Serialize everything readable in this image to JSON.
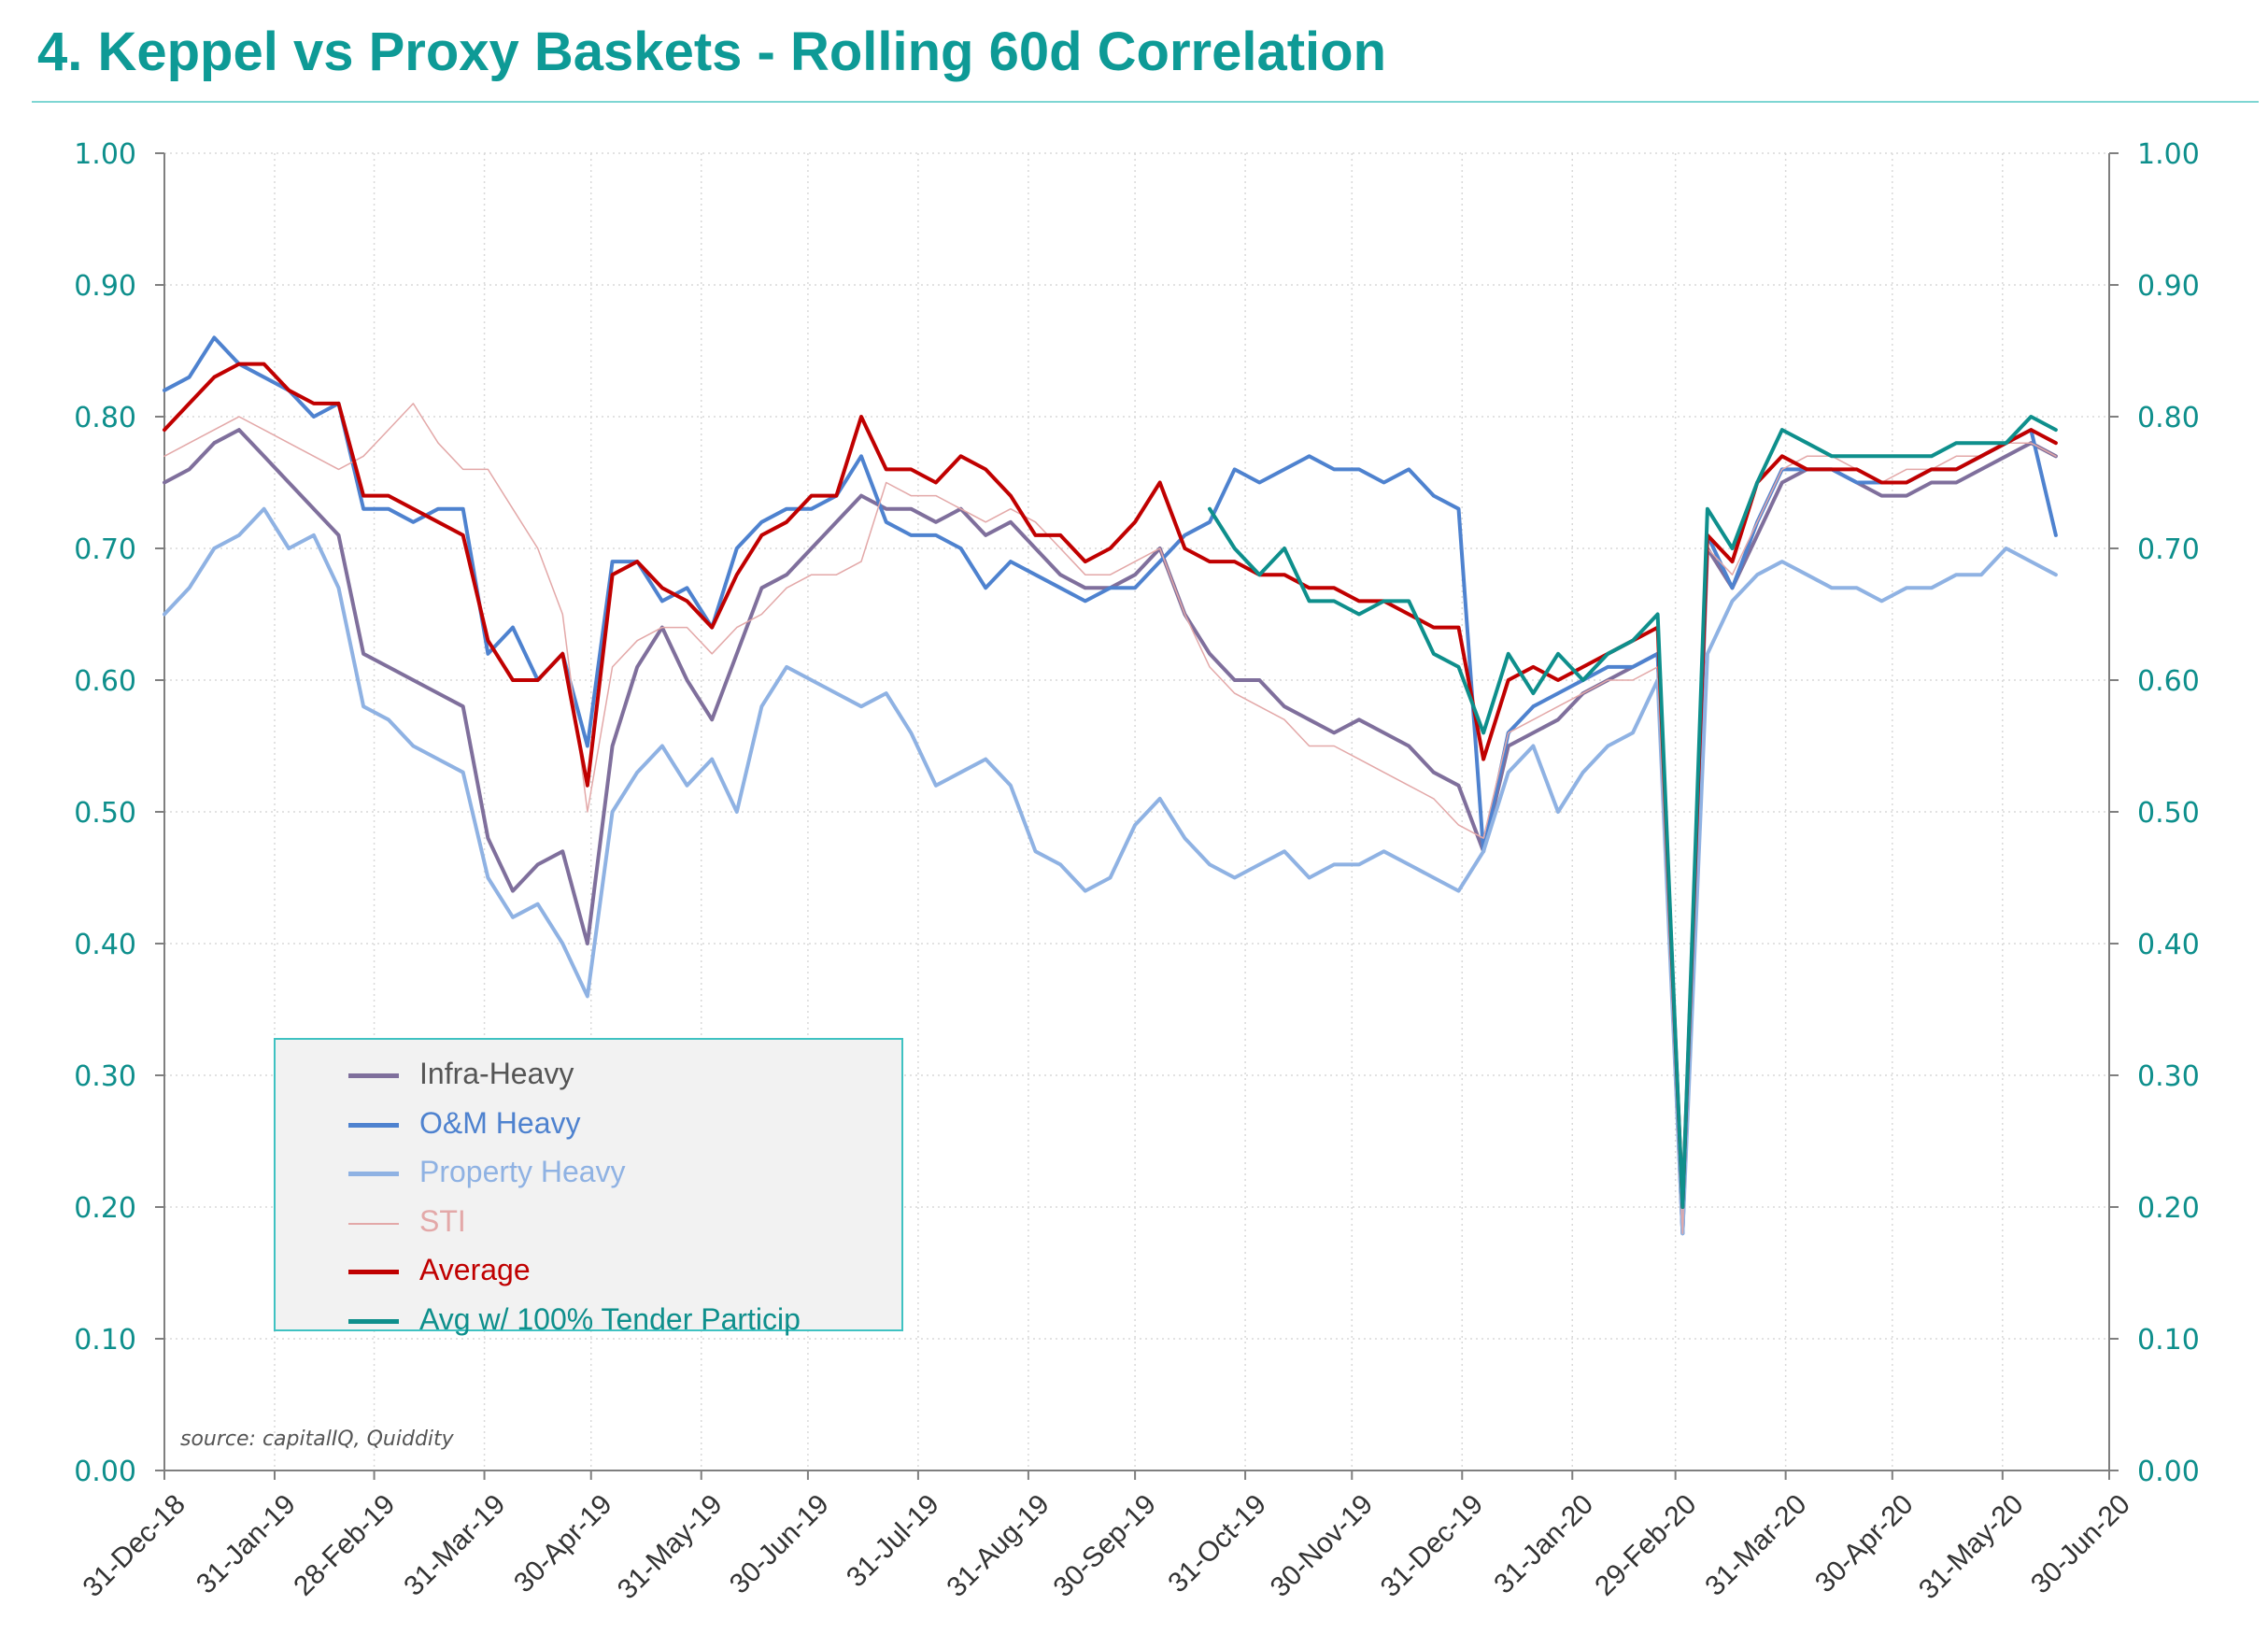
{
  "title": "4.  Keppel vs Proxy Baskets - Rolling 60d Correlation",
  "source_note": "source: capitalIQ, Quiddity",
  "colors": {
    "title": "#0e9a96",
    "axis_labels": "#0e8f8c",
    "Infra-Heavy": "#7f6f9c",
    "O&M Heavy": "#4e82cf",
    "Property Heavy": "#8fb2e3",
    "STI": "#e3a8a8",
    "Average": "#c00000",
    "Avg w/ 100% Tender Particip": "#0e8f8c"
  },
  "chart_data": {
    "type": "line",
    "title": "4.  Keppel vs Proxy Baskets - Rolling 60d Correlation",
    "xlabel": "",
    "ylabel": "",
    "ylim": [
      0,
      1
    ],
    "y_ticks": [
      "0.00",
      "0.10",
      "0.20",
      "0.30",
      "0.40",
      "0.50",
      "0.60",
      "0.70",
      "0.80",
      "0.90",
      "1.00"
    ],
    "y_axis_right": true,
    "x_ticks": [
      "31-Dec-18",
      "31-Jan-19",
      "28-Feb-19",
      "31-Mar-19",
      "30-Apr-19",
      "31-May-19",
      "30-Jun-19",
      "31-Jul-19",
      "31-Aug-19",
      "30-Sep-19",
      "31-Oct-19",
      "30-Nov-19",
      "31-Dec-19",
      "31-Jan-20",
      "29-Feb-20",
      "31-Mar-20",
      "30-Apr-20",
      "31-May-20",
      "30-Jun-20"
    ],
    "xlim": [
      "2018-12-31",
      "2020-06-30"
    ],
    "grid": true,
    "legend": "lower-left",
    "series": [
      {
        "name": "Infra-Heavy",
        "x": [
          "2018-12-31",
          "2019-01-07",
          "2019-01-14",
          "2019-01-21",
          "2019-01-28",
          "2019-02-04",
          "2019-02-11",
          "2019-02-18",
          "2019-02-25",
          "2019-03-04",
          "2019-03-11",
          "2019-03-18",
          "2019-03-25",
          "2019-04-01",
          "2019-04-08",
          "2019-04-15",
          "2019-04-22",
          "2019-04-29",
          "2019-05-06",
          "2019-05-13",
          "2019-05-20",
          "2019-05-27",
          "2019-06-03",
          "2019-06-10",
          "2019-06-17",
          "2019-06-24",
          "2019-07-01",
          "2019-07-08",
          "2019-07-15",
          "2019-07-22",
          "2019-07-29",
          "2019-08-05",
          "2019-08-12",
          "2019-08-19",
          "2019-08-26",
          "2019-09-02",
          "2019-09-09",
          "2019-09-16",
          "2019-09-23",
          "2019-09-30",
          "2019-10-07",
          "2019-10-14",
          "2019-10-21",
          "2019-10-28",
          "2019-11-04",
          "2019-11-11",
          "2019-11-18",
          "2019-11-25",
          "2019-12-02",
          "2019-12-09",
          "2019-12-16",
          "2019-12-23",
          "2019-12-30",
          "2020-01-06",
          "2020-01-13",
          "2020-01-20",
          "2020-01-27",
          "2020-02-03",
          "2020-02-10",
          "2020-02-17",
          "2020-02-24",
          "2020-03-02",
          "2020-03-09",
          "2020-03-16",
          "2020-03-23",
          "2020-03-30",
          "2020-04-06",
          "2020-04-13",
          "2020-04-20",
          "2020-04-27",
          "2020-05-04",
          "2020-05-11",
          "2020-05-18",
          "2020-05-25",
          "2020-06-01",
          "2020-06-08",
          "2020-06-15"
        ],
        "values": [
          0.75,
          0.76,
          0.78,
          0.79,
          0.77,
          0.75,
          0.73,
          0.71,
          0.62,
          0.61,
          0.6,
          0.59,
          0.58,
          0.48,
          0.44,
          0.46,
          0.47,
          0.4,
          0.55,
          0.61,
          0.64,
          0.6,
          0.57,
          0.62,
          0.67,
          0.68,
          0.7,
          0.72,
          0.74,
          0.73,
          0.73,
          0.72,
          0.73,
          0.71,
          0.72,
          0.7,
          0.68,
          0.67,
          0.67,
          0.68,
          0.7,
          0.65,
          0.62,
          0.6,
          0.6,
          0.58,
          0.57,
          0.56,
          0.57,
          0.56,
          0.55,
          0.53,
          0.52,
          0.47,
          0.55,
          0.56,
          0.57,
          0.59,
          0.6,
          0.61,
          0.62,
          0.18,
          0.7,
          0.67,
          0.71,
          0.75,
          0.76,
          0.76,
          0.75,
          0.74,
          0.74,
          0.75,
          0.75,
          0.76,
          0.77,
          0.78,
          0.77
        ]
      },
      {
        "name": "O&M Heavy",
        "x": [
          "2018-12-31",
          "2019-01-07",
          "2019-01-14",
          "2019-01-21",
          "2019-01-28",
          "2019-02-04",
          "2019-02-11",
          "2019-02-18",
          "2019-02-25",
          "2019-03-04",
          "2019-03-11",
          "2019-03-18",
          "2019-03-25",
          "2019-04-01",
          "2019-04-08",
          "2019-04-15",
          "2019-04-22",
          "2019-04-29",
          "2019-05-06",
          "2019-05-13",
          "2019-05-20",
          "2019-05-27",
          "2019-06-03",
          "2019-06-10",
          "2019-06-17",
          "2019-06-24",
          "2019-07-01",
          "2019-07-08",
          "2019-07-15",
          "2019-07-22",
          "2019-07-29",
          "2019-08-05",
          "2019-08-12",
          "2019-08-19",
          "2019-08-26",
          "2019-09-02",
          "2019-09-09",
          "2019-09-16",
          "2019-09-23",
          "2019-09-30",
          "2019-10-07",
          "2019-10-14",
          "2019-10-21",
          "2019-10-28",
          "2019-11-04",
          "2019-11-11",
          "2019-11-18",
          "2019-11-25",
          "2019-12-02",
          "2019-12-09",
          "2019-12-16",
          "2019-12-23",
          "2019-12-30",
          "2020-01-06",
          "2020-01-13",
          "2020-01-20",
          "2020-01-27",
          "2020-02-03",
          "2020-02-10",
          "2020-02-17",
          "2020-02-24",
          "2020-03-02",
          "2020-03-09",
          "2020-03-16",
          "2020-03-23",
          "2020-03-30",
          "2020-04-06",
          "2020-04-13",
          "2020-04-20",
          "2020-04-27",
          "2020-05-04",
          "2020-05-11",
          "2020-05-18",
          "2020-05-25",
          "2020-06-01",
          "2020-06-08",
          "2020-06-15"
        ],
        "values": [
          0.82,
          0.83,
          0.86,
          0.84,
          0.83,
          0.82,
          0.8,
          0.81,
          0.73,
          0.73,
          0.72,
          0.73,
          0.73,
          0.62,
          0.64,
          0.6,
          0.62,
          0.55,
          0.69,
          0.69,
          0.66,
          0.67,
          0.64,
          0.7,
          0.72,
          0.73,
          0.73,
          0.74,
          0.77,
          0.72,
          0.71,
          0.71,
          0.7,
          0.67,
          0.69,
          0.68,
          0.67,
          0.66,
          0.67,
          0.67,
          0.69,
          0.71,
          0.72,
          0.76,
          0.75,
          0.76,
          0.77,
          0.76,
          0.76,
          0.75,
          0.76,
          0.74,
          0.73,
          0.47,
          0.56,
          0.58,
          0.59,
          0.6,
          0.61,
          0.61,
          0.62,
          0.18,
          0.71,
          0.67,
          0.72,
          0.76,
          0.76,
          0.76,
          0.75,
          0.75,
          0.75,
          0.76,
          0.76,
          0.77,
          0.78,
          0.79,
          0.71
        ]
      },
      {
        "name": "Property Heavy",
        "x": [
          "2018-12-31",
          "2019-01-07",
          "2019-01-14",
          "2019-01-21",
          "2019-01-28",
          "2019-02-04",
          "2019-02-11",
          "2019-02-18",
          "2019-02-25",
          "2019-03-04",
          "2019-03-11",
          "2019-03-18",
          "2019-03-25",
          "2019-04-01",
          "2019-04-08",
          "2019-04-15",
          "2019-04-22",
          "2019-04-29",
          "2019-05-06",
          "2019-05-13",
          "2019-05-20",
          "2019-05-27",
          "2019-06-03",
          "2019-06-10",
          "2019-06-17",
          "2019-06-24",
          "2019-07-01",
          "2019-07-08",
          "2019-07-15",
          "2019-07-22",
          "2019-07-29",
          "2019-08-05",
          "2019-08-12",
          "2019-08-19",
          "2019-08-26",
          "2019-09-02",
          "2019-09-09",
          "2019-09-16",
          "2019-09-23",
          "2019-09-30",
          "2019-10-07",
          "2019-10-14",
          "2019-10-21",
          "2019-10-28",
          "2019-11-04",
          "2019-11-11",
          "2019-11-18",
          "2019-11-25",
          "2019-12-02",
          "2019-12-09",
          "2019-12-16",
          "2019-12-23",
          "2019-12-30",
          "2020-01-06",
          "2020-01-13",
          "2020-01-20",
          "2020-01-27",
          "2020-02-03",
          "2020-02-10",
          "2020-02-17",
          "2020-02-24",
          "2020-03-02",
          "2020-03-09",
          "2020-03-16",
          "2020-03-23",
          "2020-03-30",
          "2020-04-06",
          "2020-04-13",
          "2020-04-20",
          "2020-04-27",
          "2020-05-04",
          "2020-05-11",
          "2020-05-18",
          "2020-05-25",
          "2020-06-01",
          "2020-06-08",
          "2020-06-15"
        ],
        "values": [
          0.65,
          0.67,
          0.7,
          0.71,
          0.73,
          0.7,
          0.71,
          0.67,
          0.58,
          0.57,
          0.55,
          0.54,
          0.53,
          0.45,
          0.42,
          0.43,
          0.4,
          0.36,
          0.5,
          0.53,
          0.55,
          0.52,
          0.54,
          0.5,
          0.58,
          0.61,
          0.6,
          0.59,
          0.58,
          0.59,
          0.56,
          0.52,
          0.53,
          0.54,
          0.52,
          0.47,
          0.46,
          0.44,
          0.45,
          0.49,
          0.51,
          0.48,
          0.46,
          0.45,
          0.46,
          0.47,
          0.45,
          0.46,
          0.46,
          0.47,
          0.46,
          0.45,
          0.44,
          0.47,
          0.53,
          0.55,
          0.5,
          0.53,
          0.55,
          0.56,
          0.6,
          0.18,
          0.62,
          0.66,
          0.68,
          0.69,
          0.68,
          0.67,
          0.67,
          0.66,
          0.67,
          0.67,
          0.68,
          0.68,
          0.7,
          0.69,
          0.68
        ]
      },
      {
        "name": "STI",
        "x": [
          "2018-12-31",
          "2019-01-07",
          "2019-01-14",
          "2019-01-21",
          "2019-01-28",
          "2019-02-04",
          "2019-02-11",
          "2019-02-18",
          "2019-02-25",
          "2019-03-04",
          "2019-03-11",
          "2019-03-18",
          "2019-03-25",
          "2019-04-01",
          "2019-04-08",
          "2019-04-15",
          "2019-04-22",
          "2019-04-29",
          "2019-05-06",
          "2019-05-13",
          "2019-05-20",
          "2019-05-27",
          "2019-06-03",
          "2019-06-10",
          "2019-06-17",
          "2019-06-24",
          "2019-07-01",
          "2019-07-08",
          "2019-07-15",
          "2019-07-22",
          "2019-07-29",
          "2019-08-05",
          "2019-08-12",
          "2019-08-19",
          "2019-08-26",
          "2019-09-02",
          "2019-09-09",
          "2019-09-16",
          "2019-09-23",
          "2019-09-30",
          "2019-10-07",
          "2019-10-14",
          "2019-10-21",
          "2019-10-28",
          "2019-11-04",
          "2019-11-11",
          "2019-11-18",
          "2019-11-25",
          "2019-12-02",
          "2019-12-09",
          "2019-12-16",
          "2019-12-23",
          "2019-12-30",
          "2020-01-06",
          "2020-01-13",
          "2020-01-20",
          "2020-01-27",
          "2020-02-03",
          "2020-02-10",
          "2020-02-17",
          "2020-02-24",
          "2020-03-02",
          "2020-03-09",
          "2020-03-16",
          "2020-03-23",
          "2020-03-30",
          "2020-04-06",
          "2020-04-13",
          "2020-04-20",
          "2020-04-27",
          "2020-05-04",
          "2020-05-11",
          "2020-05-18",
          "2020-05-25",
          "2020-06-01",
          "2020-06-08",
          "2020-06-15"
        ],
        "values": [
          0.77,
          0.78,
          0.79,
          0.8,
          0.79,
          0.78,
          0.77,
          0.76,
          0.77,
          0.79,
          0.81,
          0.78,
          0.76,
          0.76,
          0.73,
          0.7,
          0.65,
          0.5,
          0.61,
          0.63,
          0.64,
          0.64,
          0.62,
          0.64,
          0.65,
          0.67,
          0.68,
          0.68,
          0.69,
          0.75,
          0.74,
          0.74,
          0.73,
          0.72,
          0.73,
          0.72,
          0.7,
          0.68,
          0.68,
          0.69,
          0.7,
          0.65,
          0.61,
          0.59,
          0.58,
          0.57,
          0.55,
          0.55,
          0.54,
          0.53,
          0.52,
          0.51,
          0.49,
          0.48,
          0.56,
          0.57,
          0.58,
          0.59,
          0.6,
          0.6,
          0.61,
          0.18,
          0.7,
          0.68,
          0.72,
          0.76,
          0.77,
          0.77,
          0.76,
          0.75,
          0.76,
          0.76,
          0.77,
          0.77,
          0.78,
          0.78,
          0.77
        ]
      },
      {
        "name": "Average",
        "x": [
          "2018-12-31",
          "2019-01-07",
          "2019-01-14",
          "2019-01-21",
          "2019-01-28",
          "2019-02-04",
          "2019-02-11",
          "2019-02-18",
          "2019-02-25",
          "2019-03-04",
          "2019-03-11",
          "2019-03-18",
          "2019-03-25",
          "2019-04-01",
          "2019-04-08",
          "2019-04-15",
          "2019-04-22",
          "2019-04-29",
          "2019-05-06",
          "2019-05-13",
          "2019-05-20",
          "2019-05-27",
          "2019-06-03",
          "2019-06-10",
          "2019-06-17",
          "2019-06-24",
          "2019-07-01",
          "2019-07-08",
          "2019-07-15",
          "2019-07-22",
          "2019-07-29",
          "2019-08-05",
          "2019-08-12",
          "2019-08-19",
          "2019-08-26",
          "2019-09-02",
          "2019-09-09",
          "2019-09-16",
          "2019-09-23",
          "2019-09-30",
          "2019-10-07",
          "2019-10-14",
          "2019-10-21",
          "2019-10-28",
          "2019-11-04",
          "2019-11-11",
          "2019-11-18",
          "2019-11-25",
          "2019-12-02",
          "2019-12-09",
          "2019-12-16",
          "2019-12-23",
          "2019-12-30",
          "2020-01-06",
          "2020-01-13",
          "2020-01-20",
          "2020-01-27",
          "2020-02-03",
          "2020-02-10",
          "2020-02-17",
          "2020-02-24",
          "2020-03-02",
          "2020-03-09",
          "2020-03-16",
          "2020-03-23",
          "2020-03-30",
          "2020-04-06",
          "2020-04-13",
          "2020-04-20",
          "2020-04-27",
          "2020-05-04",
          "2020-05-11",
          "2020-05-18",
          "2020-05-25",
          "2020-06-01",
          "2020-06-08",
          "2020-06-15"
        ],
        "values": [
          0.79,
          0.81,
          0.83,
          0.84,
          0.84,
          0.82,
          0.81,
          0.81,
          0.74,
          0.74,
          0.73,
          0.72,
          0.71,
          0.63,
          0.6,
          0.6,
          0.62,
          0.52,
          0.68,
          0.69,
          0.67,
          0.66,
          0.64,
          0.68,
          0.71,
          0.72,
          0.74,
          0.74,
          0.8,
          0.76,
          0.76,
          0.75,
          0.77,
          0.76,
          0.74,
          0.71,
          0.71,
          0.69,
          0.7,
          0.72,
          0.75,
          0.7,
          0.69,
          0.69,
          0.68,
          0.68,
          0.67,
          0.67,
          0.66,
          0.66,
          0.65,
          0.64,
          0.64,
          0.54,
          0.6,
          0.61,
          0.6,
          0.61,
          0.62,
          0.63,
          0.64,
          0.2,
          0.71,
          0.69,
          0.75,
          0.77,
          0.76,
          0.76,
          0.76,
          0.75,
          0.75,
          0.76,
          0.76,
          0.77,
          0.78,
          0.79,
          0.78
        ]
      },
      {
        "name": "Avg w/ 100% Tender Particip",
        "x": [
          "2019-10-21",
          "2019-10-28",
          "2019-11-04",
          "2019-11-11",
          "2019-11-18",
          "2019-11-25",
          "2019-12-02",
          "2019-12-09",
          "2019-12-16",
          "2019-12-23",
          "2019-12-30",
          "2020-01-06",
          "2020-01-13",
          "2020-01-20",
          "2020-01-27",
          "2020-02-03",
          "2020-02-10",
          "2020-02-17",
          "2020-02-24",
          "2020-03-02",
          "2020-03-09",
          "2020-03-16",
          "2020-03-23",
          "2020-03-30",
          "2020-04-06",
          "2020-04-13",
          "2020-04-20",
          "2020-04-27",
          "2020-05-04",
          "2020-05-11",
          "2020-05-18",
          "2020-05-25",
          "2020-06-01",
          "2020-06-08",
          "2020-06-15"
        ],
        "values": [
          0.73,
          0.7,
          0.68,
          0.7,
          0.66,
          0.66,
          0.65,
          0.66,
          0.66,
          0.62,
          0.61,
          0.56,
          0.62,
          0.59,
          0.62,
          0.6,
          0.62,
          0.63,
          0.65,
          0.2,
          0.73,
          0.7,
          0.75,
          0.79,
          0.78,
          0.77,
          0.77,
          0.77,
          0.77,
          0.77,
          0.78,
          0.78,
          0.78,
          0.8,
          0.79
        ]
      }
    ]
  }
}
